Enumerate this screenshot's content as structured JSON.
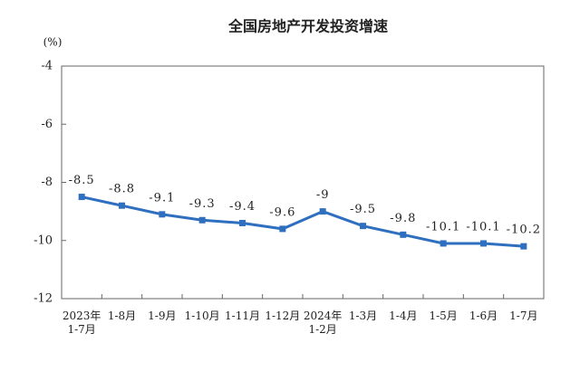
{
  "chart_data": {
    "type": "line",
    "title": "全国房地产开发投资增速",
    "y_unit": "(%)",
    "categories": [
      "2023年\n1-7月",
      "1-8月",
      "1-9月",
      "1-10月",
      "1-11月",
      "1-12月",
      "2024年\n1-2月",
      "1-3月",
      "1-4月",
      "1-5月",
      "1-6月",
      "1-7月"
    ],
    "values": [
      -8.5,
      -8.8,
      -9.1,
      -9.3,
      -9.4,
      -9.6,
      -9.0,
      -9.5,
      -9.8,
      -10.1,
      -10.1,
      -10.2
    ],
    "color": "#2f6fbf",
    "ylim": [
      -12,
      -4
    ],
    "yticks": [
      -12,
      -10,
      -8,
      -6,
      -4
    ],
    "grid": false
  }
}
